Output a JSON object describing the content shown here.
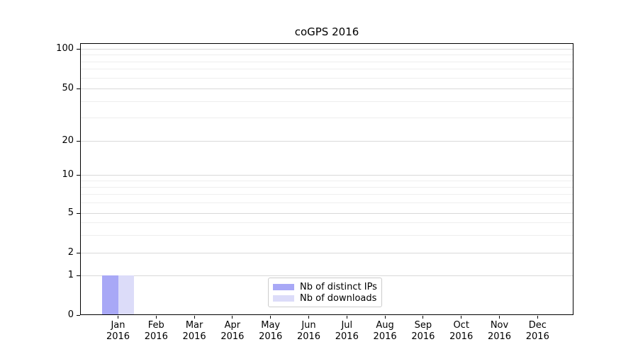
{
  "chart_data": {
    "type": "bar",
    "title": "coGPS 2016",
    "categories": [
      "Jan 2016",
      "Feb 2016",
      "Mar 2016",
      "Apr 2016",
      "May 2016",
      "Jun 2016",
      "Jul 2016",
      "Aug 2016",
      "Sep 2016",
      "Oct 2016",
      "Nov 2016",
      "Dec 2016"
    ],
    "series": [
      {
        "name": "Nb of distinct IPs",
        "color": "#a8a8f6",
        "values": [
          1,
          0,
          0,
          0,
          0,
          0,
          0,
          0,
          0,
          0,
          0,
          0
        ]
      },
      {
        "name": "Nb of downloads",
        "color": "#dcdcf9",
        "values": [
          1,
          0,
          0,
          0,
          0,
          0,
          0,
          0,
          0,
          0,
          0,
          0
        ]
      }
    ],
    "xlabel": "",
    "ylabel": "",
    "y_ticks": [
      0,
      1,
      2,
      5,
      10,
      20,
      50,
      100
    ],
    "y_minor_ticks": [
      3,
      4,
      6,
      7,
      8,
      9,
      30,
      40,
      60,
      70,
      80,
      90
    ],
    "ylim": [
      0,
      110
    ],
    "y_scale": "symlog-like (linear 0-1, logarithmic above 1)",
    "grid": "horizontal major and minor gridlines",
    "legend_position": "inside, lower center"
  }
}
